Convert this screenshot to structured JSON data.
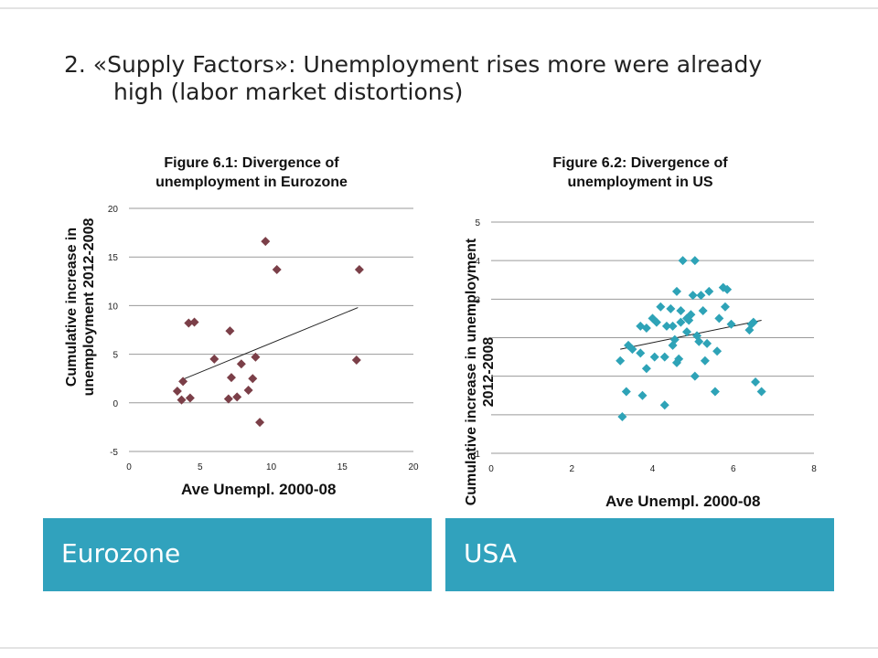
{
  "slide": {
    "title_line1": "2. «Supply Factors»: Unemployment rises more were already",
    "title_line2": "high (labor market distortions)",
    "accent_color": "#31a2bd",
    "band_left": "Eurozone",
    "band_right": "USA"
  },
  "chart_data": [
    {
      "type": "scatter",
      "title": "Figure 6.1: Divergence of unemployment in Eurozone",
      "title_line1": "Figure 6.1: Divergence of",
      "title_line2": "unemployment in Eurozone",
      "xlabel": "Ave Unempl. 2000-08",
      "ylabel": "Cumulative  increase in unemployment 2012-2008",
      "ylabel_line1": "Cumulative  increase in",
      "ylabel_line2": "unemployment 2012-2008",
      "xlim": [
        0,
        20
      ],
      "ylim": [
        -5,
        20
      ],
      "xticks": [
        0,
        5,
        10,
        15,
        20
      ],
      "yticks": [
        -5,
        0,
        5,
        10,
        15,
        20
      ],
      "grid": "horizontal",
      "marker": "diamond",
      "color": "#7b3f48",
      "points": [
        [
          3.4,
          1.2
        ],
        [
          3.7,
          0.3
        ],
        [
          3.8,
          2.2
        ],
        [
          4.3,
          0.5
        ],
        [
          4.2,
          8.2
        ],
        [
          4.6,
          8.3
        ],
        [
          6.0,
          4.5
        ],
        [
          7.0,
          0.4
        ],
        [
          7.1,
          7.4
        ],
        [
          7.2,
          2.6
        ],
        [
          7.6,
          0.6
        ],
        [
          7.9,
          4.0
        ],
        [
          8.4,
          1.3
        ],
        [
          8.7,
          2.5
        ],
        [
          8.9,
          4.7
        ],
        [
          9.2,
          -2.0
        ],
        [
          9.6,
          16.6
        ],
        [
          10.4,
          13.7
        ],
        [
          16.0,
          4.4
        ],
        [
          16.2,
          13.7
        ]
      ],
      "trendline": [
        [
          3.6,
          2.3
        ],
        [
          16.1,
          9.8
        ]
      ]
    },
    {
      "type": "scatter",
      "title": "Figure 6.2: Divergence of unemployment in US",
      "title_line1": "Figure 6.2: Divergence of",
      "title_line2": "unemployment in US",
      "xlabel": "Ave Unempl. 2000-08",
      "ylabel": "Cumulative increase in unemployment 2012-2008",
      "ylabel_line1": "Cumulative increase in unemployment",
      "ylabel_line2": "2012-2008",
      "xlim": [
        0,
        8
      ],
      "ylim": [
        -1,
        5
      ],
      "xticks": [
        0,
        2,
        4,
        6,
        8
      ],
      "yticks": [
        -1,
        0,
        1,
        2,
        3,
        4,
        5
      ],
      "ytick_labels_shown": [
        "-1",
        "3",
        "4",
        "5"
      ],
      "grid": "horizontal",
      "marker": "diamond",
      "color": "#2ea3b7",
      "points": [
        [
          3.2,
          1.4
        ],
        [
          3.25,
          -0.05
        ],
        [
          3.35,
          0.6
        ],
        [
          3.4,
          1.8
        ],
        [
          3.5,
          1.7
        ],
        [
          3.7,
          2.3
        ],
        [
          3.7,
          1.6
        ],
        [
          3.75,
          0.5
        ],
        [
          3.85,
          2.25
        ],
        [
          3.85,
          1.2
        ],
        [
          4.0,
          2.5
        ],
        [
          4.05,
          1.5
        ],
        [
          4.1,
          2.4
        ],
        [
          4.2,
          2.8
        ],
        [
          4.3,
          1.5
        ],
        [
          4.3,
          0.25
        ],
        [
          4.35,
          2.3
        ],
        [
          4.45,
          2.75
        ],
        [
          4.5,
          1.8
        ],
        [
          4.5,
          2.3
        ],
        [
          4.55,
          1.95
        ],
        [
          4.6,
          3.2
        ],
        [
          4.6,
          1.35
        ],
        [
          4.65,
          1.45
        ],
        [
          4.7,
          2.7
        ],
        [
          4.7,
          2.4
        ],
        [
          4.75,
          4.0
        ],
        [
          4.85,
          2.5
        ],
        [
          4.85,
          2.15
        ],
        [
          4.9,
          2.45
        ],
        [
          4.95,
          2.6
        ],
        [
          5.0,
          3.1
        ],
        [
          5.05,
          4.0
        ],
        [
          5.05,
          1.0
        ],
        [
          5.1,
          2.05
        ],
        [
          5.15,
          1.9
        ],
        [
          5.2,
          3.1
        ],
        [
          5.25,
          2.7
        ],
        [
          5.3,
          1.4
        ],
        [
          5.35,
          1.85
        ],
        [
          5.4,
          3.2
        ],
        [
          5.55,
          0.6
        ],
        [
          5.6,
          1.65
        ],
        [
          5.65,
          2.5
        ],
        [
          5.75,
          3.3
        ],
        [
          5.8,
          2.8
        ],
        [
          5.85,
          3.25
        ],
        [
          5.95,
          2.35
        ],
        [
          6.4,
          2.2
        ],
        [
          6.45,
          2.35
        ],
        [
          6.5,
          2.4
        ],
        [
          6.55,
          0.85
        ],
        [
          6.7,
          0.6
        ]
      ],
      "trendline": [
        [
          3.2,
          1.7
        ],
        [
          6.7,
          2.45
        ]
      ]
    }
  ]
}
